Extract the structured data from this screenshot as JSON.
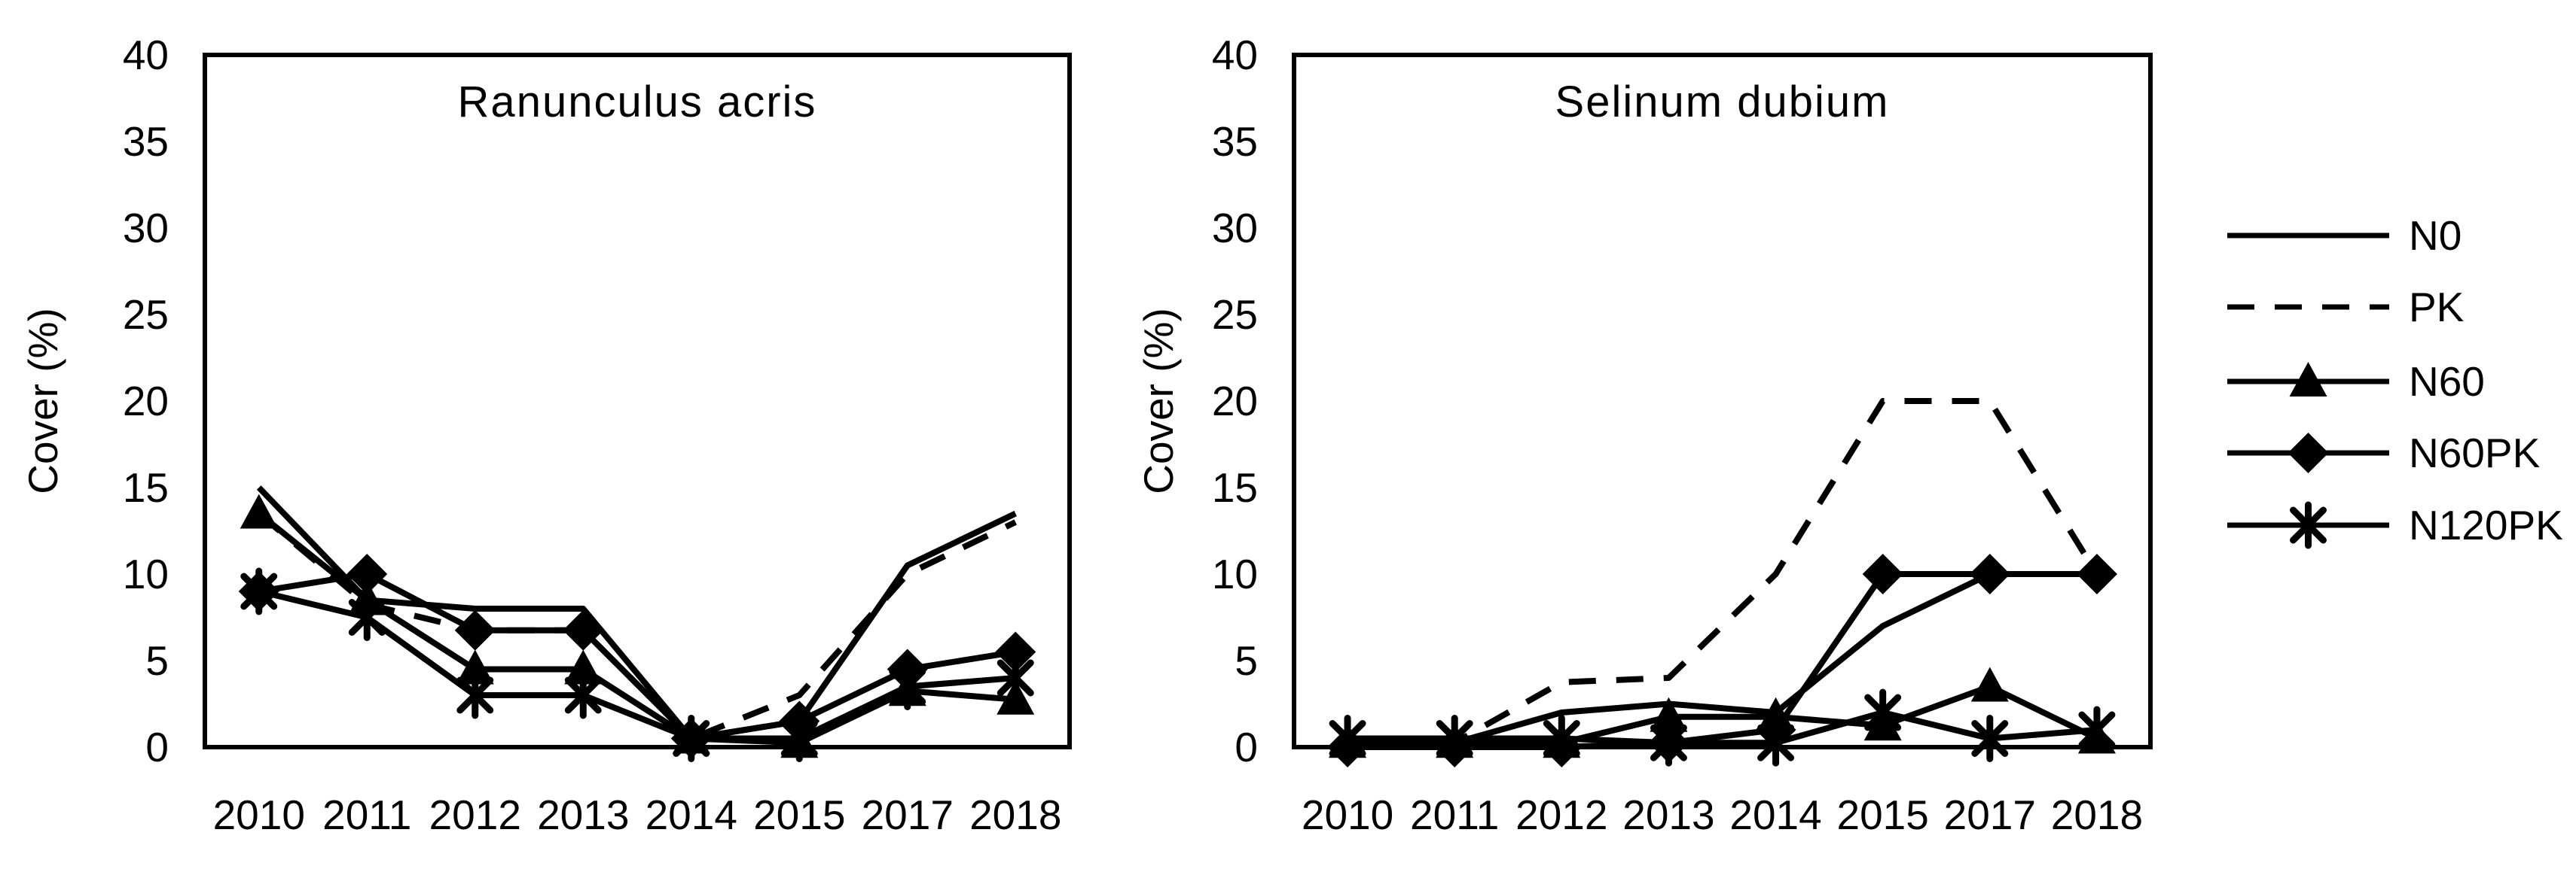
{
  "figure": {
    "ylabel": "Cover (%)",
    "background_color": "#ffffff",
    "line_color": "#000000",
    "text_color": "#000000"
  },
  "legend": {
    "position": "right-outside",
    "entries": [
      {
        "label": "N0",
        "line": "solid",
        "marker": "none"
      },
      {
        "label": "PK",
        "line": "dashed",
        "marker": "none"
      },
      {
        "label": "N60",
        "line": "solid",
        "marker": "triangle"
      },
      {
        "label": "N60PK",
        "line": "solid",
        "marker": "diamond"
      },
      {
        "label": "N120PK",
        "line": "solid",
        "marker": "asterisk"
      }
    ]
  },
  "chart_data": [
    {
      "type": "line",
      "title": "Ranunculus acris",
      "xlabel": "",
      "ylabel": "Cover (%)",
      "ylim": [
        0,
        40
      ],
      "yticks": [
        0,
        5,
        10,
        15,
        20,
        25,
        30,
        35,
        40
      ],
      "grid": false,
      "categories": [
        "2010",
        "2011",
        "2012",
        "2013",
        "2014",
        "2015",
        "2017",
        "2018"
      ],
      "series": [
        {
          "name": "N0",
          "line": "solid",
          "marker": "none",
          "values": [
            15,
            8.5,
            8,
            8,
            0.5,
            1.5,
            10.5,
            13.5
          ]
        },
        {
          "name": "PK",
          "line": "dashed",
          "marker": "none",
          "values": [
            13.5,
            8.25,
            6.75,
            6.75,
            0.5,
            3,
            10,
            13
          ]
        },
        {
          "name": "N60",
          "line": "solid",
          "marker": "triangle",
          "values": [
            13.5,
            8.5,
            4.5,
            4.5,
            0.5,
            0.25,
            3.25,
            2.75
          ]
        },
        {
          "name": "N60PK",
          "line": "solid",
          "marker": "diamond",
          "values": [
            9,
            10,
            6.75,
            6.75,
            0.5,
            1.5,
            4.5,
            5.5
          ]
        },
        {
          "name": "N120PK",
          "line": "solid",
          "marker": "asterisk",
          "values": [
            9,
            7.5,
            3,
            3,
            0.5,
            0.5,
            3.5,
            4
          ]
        }
      ]
    },
    {
      "type": "line",
      "title": "Selinum dubium",
      "xlabel": "",
      "ylabel": "Cover (%)",
      "ylim": [
        0,
        40
      ],
      "yticks": [
        0,
        5,
        10,
        15,
        20,
        25,
        30,
        35,
        40
      ],
      "grid": false,
      "categories": [
        "2010",
        "2011",
        "2012",
        "2013",
        "2014",
        "2015",
        "2017",
        "2018"
      ],
      "series": [
        {
          "name": "N0",
          "line": "solid",
          "marker": "none",
          "values": [
            0.25,
            0.25,
            2,
            2.5,
            2,
            7,
            10,
            10
          ]
        },
        {
          "name": "PK",
          "line": "dashed",
          "marker": "none",
          "values": [
            0.25,
            0.25,
            3.75,
            4,
            10,
            20,
            20,
            10
          ]
        },
        {
          "name": "N60",
          "line": "solid",
          "marker": "triangle",
          "values": [
            0.25,
            0.25,
            0.25,
            1.75,
            1.75,
            1.25,
            3.5,
            0.5
          ]
        },
        {
          "name": "N60PK",
          "line": "solid",
          "marker": "diamond",
          "values": [
            0,
            0,
            0,
            0.25,
            1,
            10,
            10,
            10
          ]
        },
        {
          "name": "N120PK",
          "line": "solid",
          "marker": "asterisk",
          "values": [
            0.5,
            0.5,
            0.5,
            0.25,
            0.25,
            2,
            0.5,
            1
          ]
        }
      ]
    }
  ]
}
